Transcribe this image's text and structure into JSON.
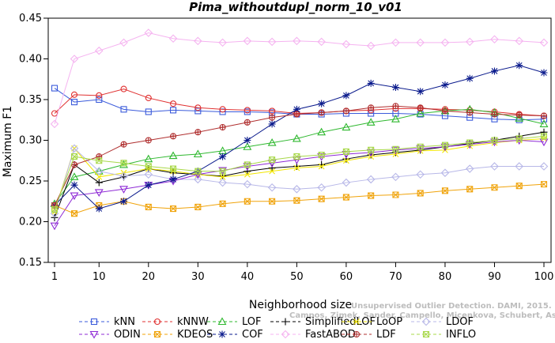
{
  "chart_data": {
    "type": "line",
    "title": "Pima_withoutdupl_norm_10_v01",
    "xlabel": "Neighborhood size",
    "ylabel": "Maximum F1",
    "xlim": [
      1,
      100
    ],
    "ylim": [
      0.15,
      0.45
    ],
    "x_ticks": [
      1,
      10,
      20,
      30,
      40,
      50,
      60,
      70,
      80,
      90,
      100
    ],
    "y_ticks": [
      "0.15",
      "0.20",
      "0.25",
      "0.30",
      "0.35",
      "0.40",
      "0.45"
    ],
    "legend_position": "bottom",
    "x": [
      1,
      5,
      10,
      15,
      20,
      25,
      30,
      35,
      40,
      45,
      50,
      55,
      60,
      65,
      70,
      75,
      80,
      85,
      90,
      95,
      100
    ],
    "series": [
      {
        "name": "kNN",
        "color": "#3b5bdb",
        "marker": "square",
        "values": [
          0.364,
          0.347,
          0.35,
          0.338,
          0.335,
          0.337,
          0.336,
          0.335,
          0.335,
          0.334,
          0.332,
          0.332,
          0.333,
          0.333,
          0.333,
          0.332,
          0.33,
          0.328,
          0.326,
          0.325,
          0.326
        ]
      },
      {
        "name": "kNNW",
        "color": "#e03131",
        "marker": "circle",
        "values": [
          0.333,
          0.356,
          0.355,
          0.363,
          0.352,
          0.345,
          0.34,
          0.338,
          0.337,
          0.336,
          0.333,
          0.334,
          0.336,
          0.337,
          0.339,
          0.339,
          0.338,
          0.337,
          0.335,
          0.332,
          0.33
        ]
      },
      {
        "name": "LOF",
        "color": "#2fb82f",
        "marker": "triangle-up",
        "values": [
          0.222,
          0.255,
          0.262,
          0.27,
          0.277,
          0.281,
          0.283,
          0.287,
          0.292,
          0.297,
          0.302,
          0.31,
          0.316,
          0.322,
          0.326,
          0.333,
          0.336,
          0.338,
          0.334,
          0.327,
          0.32
        ]
      },
      {
        "name": "SimplifiedLOF",
        "color": "#000000",
        "marker": "plus",
        "values": [
          0.205,
          0.27,
          0.248,
          0.255,
          0.265,
          0.26,
          0.258,
          0.256,
          0.262,
          0.266,
          0.268,
          0.27,
          0.277,
          0.282,
          0.285,
          0.288,
          0.292,
          0.296,
          0.3,
          0.305,
          0.31
        ]
      },
      {
        "name": "LoOP",
        "color": "#f2e600",
        "marker": "x",
        "values": [
          0.212,
          0.29,
          0.255,
          0.26,
          0.265,
          0.262,
          0.258,
          0.255,
          0.258,
          0.262,
          0.266,
          0.268,
          0.275,
          0.28,
          0.283,
          0.287,
          0.288,
          0.293,
          0.297,
          0.3,
          0.302
        ]
      },
      {
        "name": "LDOF",
        "color": "#b8b8e8",
        "marker": "diamond",
        "values": [
          0.21,
          0.29,
          0.262,
          0.256,
          0.258,
          0.252,
          0.252,
          0.248,
          0.246,
          0.242,
          0.24,
          0.242,
          0.248,
          0.252,
          0.255,
          0.258,
          0.26,
          0.265,
          0.268,
          0.268,
          0.268
        ]
      },
      {
        "name": "ODIN",
        "color": "#8f2bd6",
        "marker": "triangle-down",
        "values": [
          0.195,
          0.232,
          0.236,
          0.24,
          0.245,
          0.25,
          0.258,
          0.263,
          0.268,
          0.272,
          0.276,
          0.28,
          0.283,
          0.285,
          0.288,
          0.29,
          0.292,
          0.295,
          0.298,
          0.3,
          0.298
        ]
      },
      {
        "name": "KDEOS",
        "color": "#f0a30a",
        "marker": "square-x",
        "values": [
          0.22,
          0.21,
          0.22,
          0.225,
          0.218,
          0.216,
          0.218,
          0.222,
          0.225,
          0.225,
          0.226,
          0.228,
          0.23,
          0.232,
          0.233,
          0.235,
          0.238,
          0.24,
          0.242,
          0.244,
          0.246
        ]
      },
      {
        "name": "COF",
        "color": "#0a1a8c",
        "marker": "asterisk",
        "values": [
          0.22,
          0.245,
          0.216,
          0.225,
          0.245,
          0.252,
          0.262,
          0.28,
          0.3,
          0.32,
          0.338,
          0.345,
          0.355,
          0.37,
          0.365,
          0.36,
          0.368,
          0.376,
          0.385,
          0.392,
          0.383
        ]
      },
      {
        "name": "FastABOD",
        "color": "#f5b3f0",
        "marker": "diamond",
        "values": [
          0.32,
          0.4,
          0.41,
          0.42,
          0.432,
          0.425,
          0.422,
          0.42,
          0.422,
          0.421,
          0.422,
          0.421,
          0.418,
          0.416,
          0.42,
          0.42,
          0.42,
          0.421,
          0.424,
          0.422,
          0.42
        ]
      },
      {
        "name": "LDF",
        "color": "#b03030",
        "marker": "circle-plus",
        "values": [
          0.22,
          0.27,
          0.28,
          0.295,
          0.3,
          0.305,
          0.31,
          0.316,
          0.322,
          0.328,
          0.332,
          0.334,
          0.336,
          0.34,
          0.342,
          0.34,
          0.336,
          0.334,
          0.332,
          0.331,
          0.33
        ]
      },
      {
        "name": "INFLO",
        "color": "#a8d84a",
        "marker": "square-x",
        "values": [
          0.215,
          0.28,
          0.275,
          0.272,
          0.268,
          0.265,
          0.262,
          0.262,
          0.27,
          0.276,
          0.28,
          0.282,
          0.286,
          0.288,
          0.289,
          0.292,
          0.294,
          0.297,
          0.3,
          0.302,
          0.305
        ]
      }
    ]
  },
  "watermark": {
    "line1": "Unsupervised Outlier Detection. DAMI, 2015.",
    "line2": "Campos, Zimek, Sander, Campello, Micenkova, Schubert, Assent, Houle"
  }
}
